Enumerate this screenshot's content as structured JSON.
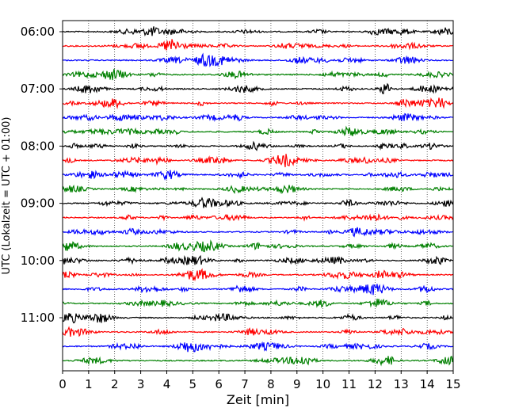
{
  "chart_data": {
    "type": "line",
    "title": "",
    "xlabel": "Zeit  [min]",
    "ylabel": "UTC (Lokalzeit = UTC + 01:00)",
    "xlim": [
      0,
      15
    ],
    "x_ticks": [
      "0",
      "1",
      "2",
      "3",
      "4",
      "5",
      "6",
      "7",
      "8",
      "9",
      "10",
      "11",
      "12",
      "13",
      "14",
      "15"
    ],
    "y_tick_labels": [
      "06:00",
      "07:00",
      "08:00",
      "09:00",
      "10:00",
      "11:00"
    ],
    "grid": true,
    "trace_colors": [
      "#000000",
      "#ff0000",
      "#0000ff",
      "#008000"
    ],
    "series": [
      {
        "label": "06:00",
        "color": "#000000"
      },
      {
        "label": "06:15",
        "color": "#ff0000"
      },
      {
        "label": "06:30",
        "color": "#0000ff"
      },
      {
        "label": "06:45",
        "color": "#008000"
      },
      {
        "label": "07:00",
        "color": "#000000"
      },
      {
        "label": "07:15",
        "color": "#ff0000"
      },
      {
        "label": "07:30",
        "color": "#0000ff"
      },
      {
        "label": "07:45",
        "color": "#008000"
      },
      {
        "label": "08:00",
        "color": "#000000"
      },
      {
        "label": "08:15",
        "color": "#ff0000"
      },
      {
        "label": "08:30",
        "color": "#0000ff"
      },
      {
        "label": "08:45",
        "color": "#008000"
      },
      {
        "label": "09:00",
        "color": "#000000"
      },
      {
        "label": "09:15",
        "color": "#ff0000"
      },
      {
        "label": "09:30",
        "color": "#0000ff"
      },
      {
        "label": "09:45",
        "color": "#008000"
      },
      {
        "label": "10:00",
        "color": "#000000"
      },
      {
        "label": "10:15",
        "color": "#ff0000"
      },
      {
        "label": "10:30",
        "color": "#0000ff"
      },
      {
        "label": "10:45",
        "color": "#008000"
      },
      {
        "label": "11:00",
        "color": "#000000"
      },
      {
        "label": "11:15",
        "color": "#ff0000"
      },
      {
        "label": "11:30",
        "color": "#0000ff"
      },
      {
        "label": "11:45",
        "color": "#008000"
      }
    ]
  }
}
